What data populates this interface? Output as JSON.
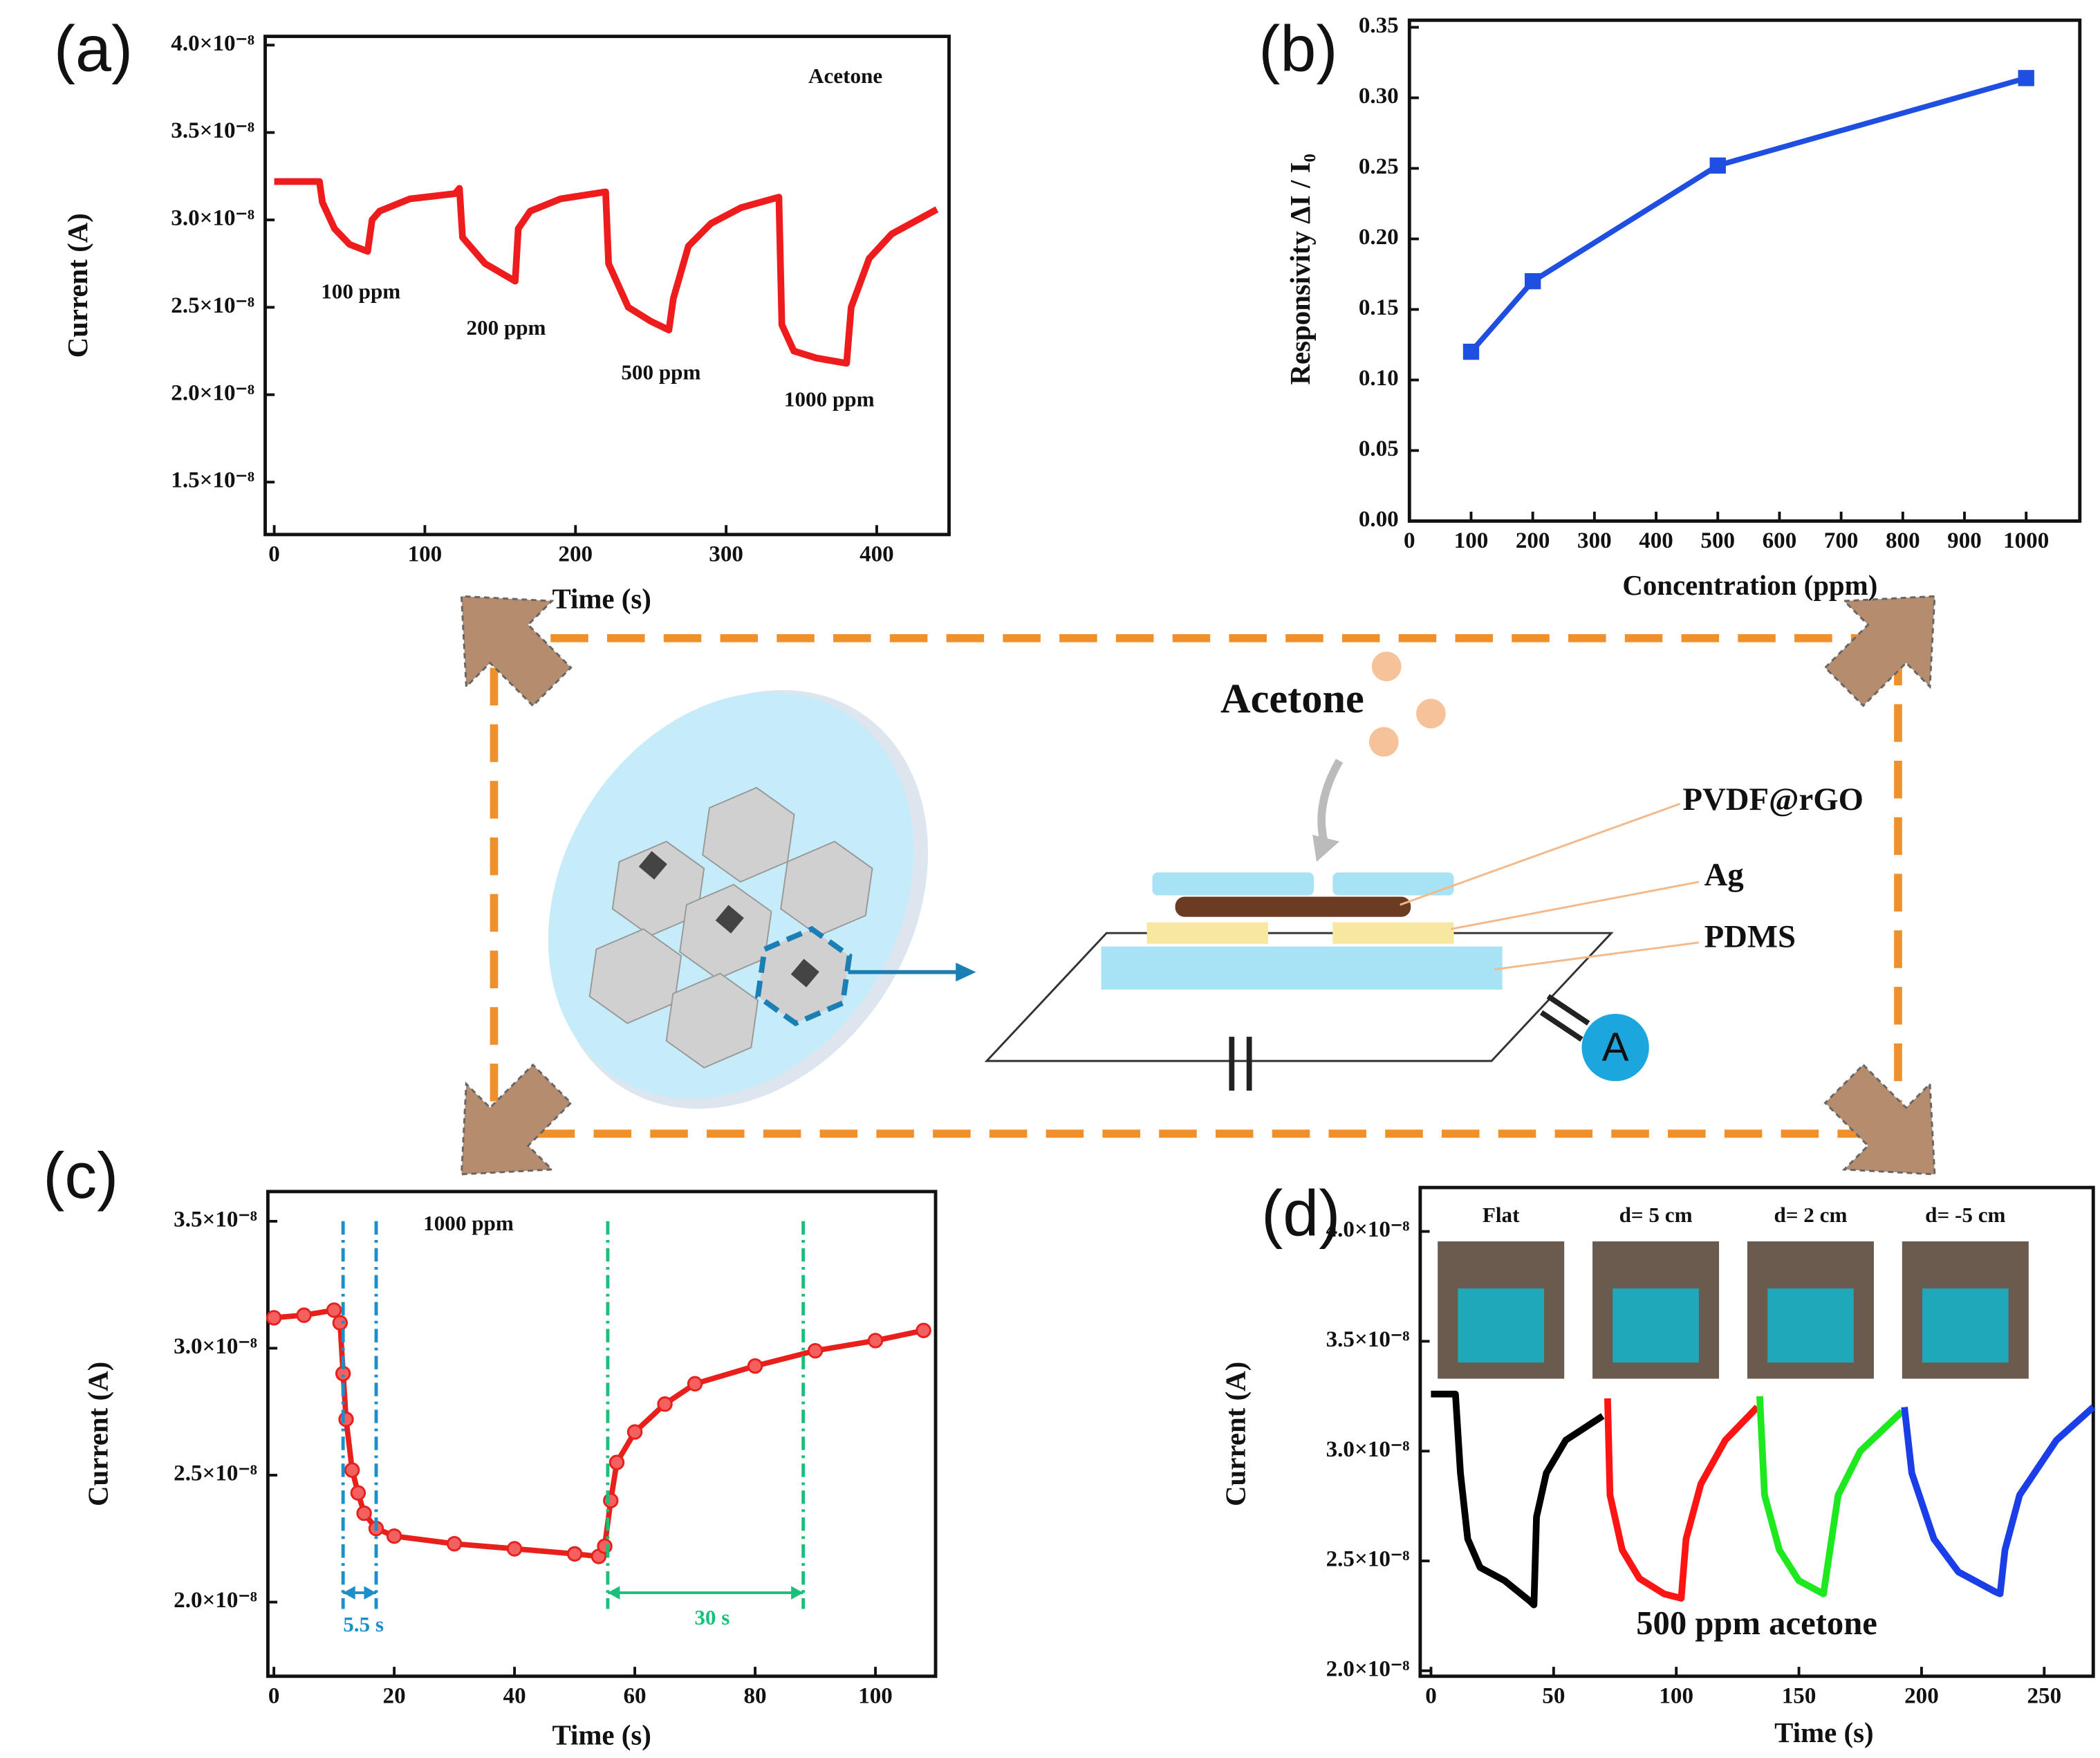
{
  "chart_data": [
    {
      "type": "line",
      "label": "(a)",
      "xlabel": "Time (s)",
      "ylabel": "Current (A)",
      "color": "#ee1c1c",
      "xlim": [
        -6,
        448
      ],
      "xticks": [
        0,
        100,
        200,
        300,
        400
      ],
      "ylim": [
        1.2e-08,
        4.05e-08
      ],
      "yticks": [
        {
          "value": 1.5e-08,
          "label": "1.5×10⁻⁸"
        },
        {
          "value": 2e-08,
          "label": "2.0×10⁻⁸"
        },
        {
          "value": 2.5e-08,
          "label": "2.5×10⁻⁸"
        },
        {
          "value": 3e-08,
          "label": "3.0×10⁻⁸"
        },
        {
          "value": 3.5e-08,
          "label": "3.5×10⁻⁸"
        },
        {
          "value": 4e-08,
          "label": "4.0×10⁻⁸"
        }
      ],
      "x": [
        0,
        30,
        32,
        40,
        50,
        62,
        65,
        70,
        90,
        120,
        123,
        125,
        140,
        160,
        162,
        170,
        190,
        220,
        222,
        235,
        250,
        262,
        265,
        275,
        290,
        310,
        335,
        337,
        345,
        360,
        380,
        383,
        395,
        410,
        440
      ],
      "values": [
        3.22e-08,
        3.22e-08,
        3.1e-08,
        2.95e-08,
        2.86e-08,
        2.82e-08,
        3e-08,
        3.05e-08,
        3.12e-08,
        3.15e-08,
        3.18e-08,
        2.9e-08,
        2.75e-08,
        2.65e-08,
        2.95e-08,
        3.05e-08,
        3.12e-08,
        3.16e-08,
        2.75e-08,
        2.5e-08,
        2.42e-08,
        2.37e-08,
        2.55e-08,
        2.85e-08,
        2.98e-08,
        3.07e-08,
        3.13e-08,
        2.4e-08,
        2.25e-08,
        2.21e-08,
        2.18e-08,
        2.5e-08,
        2.78e-08,
        2.92e-08,
        3.06e-08
      ],
      "annotations": [
        "Acetone",
        "100 ppm",
        "200 ppm",
        "500 ppm",
        "1000 ppm"
      ]
    },
    {
      "type": "line",
      "label": "(b)",
      "xlabel": "Concentration (ppm)",
      "ylabel": "Responsivity ΔI / I₀",
      "color": "#1f4fe0",
      "marker": "square",
      "xlim": [
        0,
        1087
      ],
      "xticks": [
        0,
        100,
        200,
        300,
        400,
        500,
        600,
        700,
        800,
        900,
        1000
      ],
      "ylim": [
        0,
        0.355
      ],
      "yticks": [
        {
          "value": 0,
          "label": "0.00"
        },
        {
          "value": 0.05,
          "label": "0.05"
        },
        {
          "value": 0.1,
          "label": "0.10"
        },
        {
          "value": 0.15,
          "label": "0.15"
        },
        {
          "value": 0.2,
          "label": "0.20"
        },
        {
          "value": 0.25,
          "label": "0.25"
        },
        {
          "value": 0.3,
          "label": "0.30"
        },
        {
          "value": 0.35,
          "label": "0.35"
        }
      ],
      "x": [
        100,
        200,
        500,
        1000
      ],
      "values": [
        0.12,
        0.17,
        0.252,
        0.314
      ]
    },
    {
      "type": "line",
      "label": "(c)",
      "xlabel": "Time (s)",
      "ylabel": "Current (A)",
      "color": "#e8201c",
      "marker": "circle",
      "xlim": [
        -1,
        110
      ],
      "xticks": [
        0,
        20,
        40,
        60,
        80,
        100
      ],
      "ylim": [
        1.708e-08,
        3.617e-08
      ],
      "yticks": [
        {
          "value": 2e-08,
          "label": "2.0×10⁻⁸"
        },
        {
          "value": 2.5e-08,
          "label": "2.5×10⁻⁸"
        },
        {
          "value": 3e-08,
          "label": "3.0×10⁻⁸"
        },
        {
          "value": 3.5e-08,
          "label": "3.5×10⁻⁸"
        }
      ],
      "x": [
        0,
        5,
        10,
        11,
        11.5,
        12,
        13,
        14,
        15,
        17,
        20,
        30,
        40,
        50,
        54,
        55,
        56,
        57,
        60,
        65,
        70,
        80,
        90,
        100,
        108
      ],
      "values": [
        3.12e-08,
        3.13e-08,
        3.15e-08,
        3.1e-08,
        2.9e-08,
        2.72e-08,
        2.52e-08,
        2.43e-08,
        2.35e-08,
        2.29e-08,
        2.26e-08,
        2.23e-08,
        2.21e-08,
        2.19e-08,
        2.18e-08,
        2.22e-08,
        2.4e-08,
        2.55e-08,
        2.67e-08,
        2.78e-08,
        2.86e-08,
        2.93e-08,
        2.99e-08,
        3.03e-08,
        3.07e-08
      ],
      "reference_lines": [
        {
          "x": 11.5,
          "color": "#1a8fc9"
        },
        {
          "x": 17,
          "color": "#1a8fc9"
        },
        {
          "x": 55.5,
          "color": "#19c07a"
        },
        {
          "x": 88,
          "color": "#19c07a"
        }
      ],
      "annotations": [
        "1000 ppm",
        "5.5 s",
        "30 s"
      ]
    },
    {
      "type": "line",
      "label": "(d)",
      "xlabel": "Time (s)",
      "ylabel": "Current (A)",
      "xlim": [
        -4.4,
        270
      ],
      "xticks": [
        0,
        50,
        100,
        150,
        200,
        250
      ],
      "ylim": [
        1.975e-08,
        4.2e-08
      ],
      "yticks": [
        {
          "value": 2e-08,
          "label": "2.0×10⁻⁸"
        },
        {
          "value": 2.5e-08,
          "label": "2.5×10⁻⁸"
        },
        {
          "value": 3e-08,
          "label": "3.0×10⁻⁸"
        },
        {
          "value": 3.5e-08,
          "label": "3.5×10⁻⁸"
        },
        {
          "value": 4e-08,
          "label": "4.0×10⁻⁸"
        }
      ],
      "series": [
        {
          "name": "Flat",
          "color": "#000000",
          "x": [
            0,
            10,
            12,
            15,
            20,
            30,
            40,
            42,
            43,
            47,
            55,
            70
          ],
          "values": [
            3.26e-08,
            3.26e-08,
            2.9e-08,
            2.6e-08,
            2.47e-08,
            2.41e-08,
            2.32e-08,
            2.3e-08,
            2.7e-08,
            2.9e-08,
            3.05e-08,
            3.16e-08
          ]
        },
        {
          "name": "d= 5 cm",
          "color": "#ff1414",
          "x": [
            72,
            73,
            78,
            85,
            95,
            102,
            104,
            110,
            120,
            133
          ],
          "values": [
            3.24e-08,
            2.8e-08,
            2.55e-08,
            2.42e-08,
            2.35e-08,
            2.33e-08,
            2.6e-08,
            2.85e-08,
            3.05e-08,
            3.2e-08
          ]
        },
        {
          "name": "d= 2 cm",
          "color": "#1ee81e",
          "x": [
            134,
            136,
            142,
            150,
            160,
            162,
            166,
            175,
            192
          ],
          "values": [
            3.25e-08,
            2.8e-08,
            2.55e-08,
            2.41e-08,
            2.35e-08,
            2.5e-08,
            2.8e-08,
            3e-08,
            3.18e-08
          ]
        },
        {
          "name": "d= -5 cm",
          "color": "#1a3ee8",
          "x": [
            193,
            196,
            205,
            215,
            230,
            232,
            234,
            240,
            255,
            270
          ],
          "values": [
            3.2e-08,
            2.9e-08,
            2.6e-08,
            2.45e-08,
            2.36e-08,
            2.35e-08,
            2.55e-08,
            2.8e-08,
            3.05e-08,
            3.2e-08
          ]
        }
      ],
      "annotations": [
        "500 ppm acetone"
      ]
    }
  ],
  "diagram": {
    "gas": "Acetone",
    "layers": [
      "PVDF@rGO",
      "Ag",
      "PDMS"
    ],
    "meter": "A"
  }
}
